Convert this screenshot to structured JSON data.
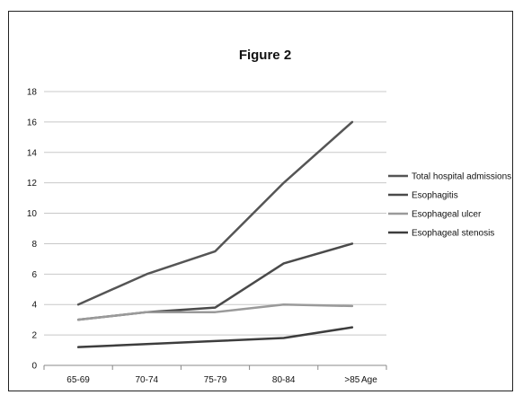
{
  "chart_data": {
    "type": "line",
    "title": "Figure 2",
    "xlabel": "Age",
    "ylabel": "",
    "categories": [
      "65-69",
      "70-74",
      "75-79",
      "80-84",
      ">85"
    ],
    "ylim": [
      0,
      18
    ],
    "yticks": [
      "0",
      "2",
      "4",
      "6",
      "8",
      "10",
      "12",
      "14",
      "16",
      "18"
    ],
    "grid": "horizontal",
    "legend_position": "right",
    "series": [
      {
        "name": "Total hospital admissions",
        "values": [
          4,
          6,
          7.5,
          12,
          16
        ],
        "color": "#555555"
      },
      {
        "name": "Esophagitis",
        "values": [
          3,
          3.5,
          3.8,
          6.7,
          8
        ],
        "color": "#4a4a4a"
      },
      {
        "name": "Esophageal ulcer",
        "values": [
          3,
          3.5,
          3.5,
          4,
          3.9
        ],
        "color": "#9a9a9a"
      },
      {
        "name": "Esophageal stenosis",
        "values": [
          1.2,
          1.4,
          1.6,
          1.8,
          2.5
        ],
        "color": "#3d3d3d"
      }
    ]
  }
}
